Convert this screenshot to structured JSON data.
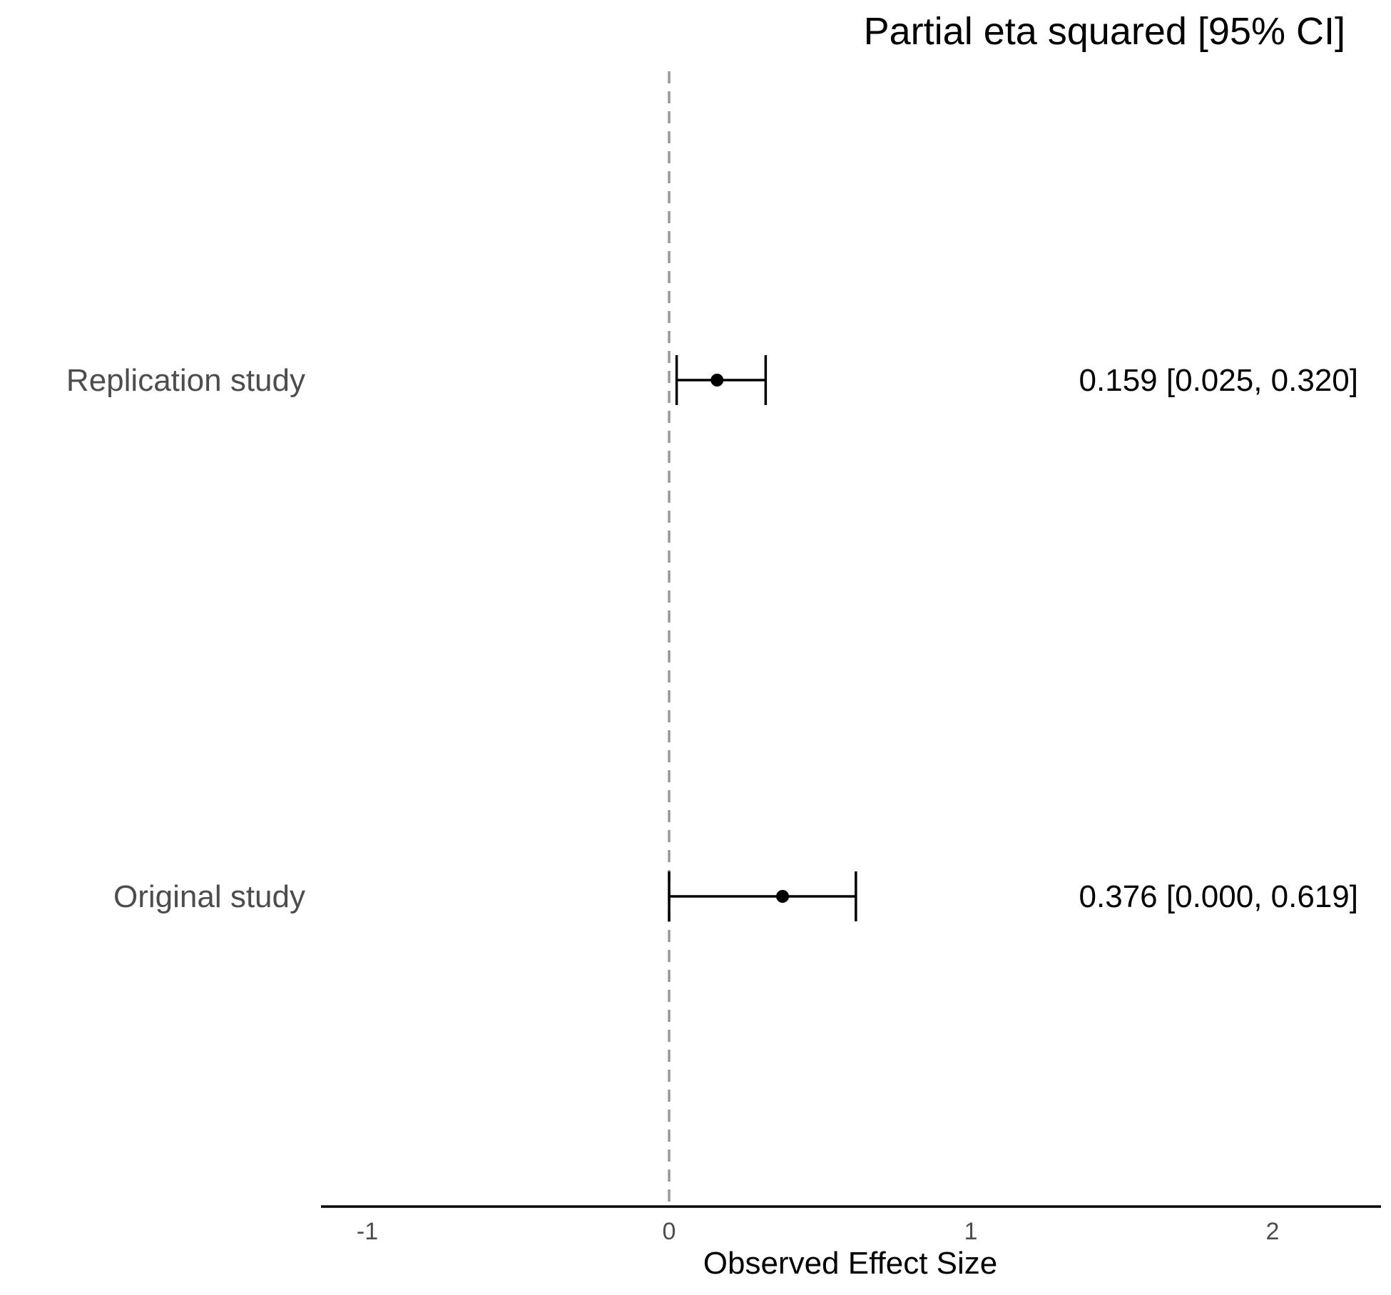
{
  "chart_data": {
    "type": "forest",
    "header": "Partial eta squared [95% CI]",
    "xlabel": "Observed Effect Size",
    "xlim": [
      -1.2,
      2.35
    ],
    "x_ticks": [
      -1,
      0,
      1,
      2
    ],
    "x_tick_labels": [
      "-1",
      "0",
      "1",
      "2"
    ],
    "reference_line": 0,
    "rows": [
      {
        "label": "Replication study",
        "estimate": 0.159,
        "lower": 0.025,
        "upper": 0.32,
        "ci_text": "0.159 [0.025, 0.320]"
      },
      {
        "label": "Original study",
        "estimate": 0.376,
        "lower": 0.0,
        "upper": 0.619,
        "ci_text": "0.376 [0.000, 0.619]"
      }
    ],
    "grid": false,
    "colors": {
      "point": "#000000",
      "reference_line": "#999999",
      "axis": "#000000"
    }
  }
}
